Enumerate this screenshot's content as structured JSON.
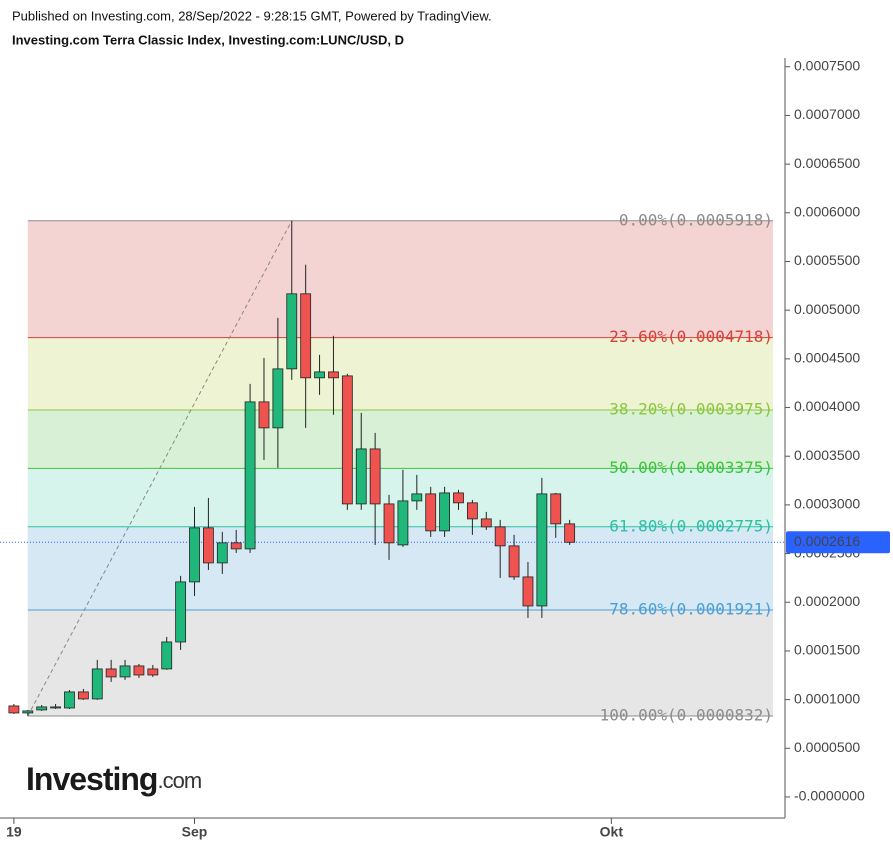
{
  "chart_data": {
    "type": "candlestick",
    "subtitle": "Published on Investing.com, 28/Sep/2022 - 9:28:15 GMT, Powered by TradingView.",
    "title": "Investing.com Terra Classic Index, Investing.com:LUNC/USD, D",
    "logo": "Investing",
    "logo_suffix": ".com",
    "x": [
      0,
      1,
      2,
      3,
      4,
      5,
      6,
      7,
      8,
      9,
      10,
      11,
      12,
      13,
      14,
      15,
      16,
      17,
      18,
      19,
      20,
      21,
      22,
      23,
      24,
      25,
      26,
      27,
      28,
      29,
      30,
      31,
      32,
      33,
      34,
      35,
      36,
      37,
      38,
      39,
      40
    ],
    "xlim": [
      -1,
      55.5
    ],
    "xticks": [
      {
        "value": 0,
        "label": "19"
      },
      {
        "value": 13,
        "label": "Sep"
      },
      {
        "value": 43,
        "label": "Okt"
      }
    ],
    "open": [
      9.35e-05,
      8.63e-05,
      8.94e-05,
      9.14e-05,
      9.14e-05,
      0.0001079,
      0.0001007,
      0.0001315,
      0.0001233,
      0.0001346,
      0.0001315,
      0.0001315,
      0.0001592,
      0.0002209,
      0.0002764,
      0.0002404,
      0.000261,
      0.0002548,
      0.0004058,
      0.0003791,
      0.0004397,
      0.0005168,
      0.0004305,
      0.0004366,
      0.0004325,
      0.000301,
      0.0003575,
      0.000301,
      0.0002589,
      0.0003041,
      0.0003113,
      0.0002733,
      0.0003123,
      0.0003021,
      0.0002856,
      0.0002774,
      0.0002579,
      0.000226,
      0.0001962,
      0.0003113,
      0.0002805
    ],
    "high": [
      9.55e-05,
      8.94e-05,
      9.45e-05,
      9.55e-05,
      0.0001099,
      0.000111,
      0.0001408,
      0.0001408,
      0.0001408,
      0.0001366,
      0.0001356,
      0.0001644,
      0.0002271,
      0.0002979,
      0.0003072,
      0.0002723,
      0.0002743,
      0.0004243,
      0.000451,
      0.0004921,
      0.0005918,
      0.0005466,
      0.0004541,
      0.0004736,
      0.0004346,
      0.0003945,
      0.000374,
      0.0003103,
      0.000336,
      0.0003308,
      0.0003185,
      0.0003185,
      0.0003154,
      0.0003051,
      0.0002928,
      0.0002846,
      0.0002692,
      0.0002414,
      0.0003277,
      0.0003123,
      0.0002846
    ],
    "low": [
      8.53e-05,
      8.32e-05,
      8.84e-05,
      9.04e-05,
      9.04e-05,
      9.97e-05,
      9.97e-05,
      0.0001182,
      0.0001202,
      0.0001223,
      0.0001233,
      0.0001305,
      0.000151,
      0.0002065,
      0.0002332,
      0.0002291,
      0.0002507,
      0.0002507,
      0.0003462,
      0.000338,
      0.0004284,
      0.0003791,
      0.000413,
      0.0003925,
      0.0002949,
      0.0002949,
      0.0002589,
      0.0002435,
      0.0002569,
      0.0002949,
      0.0002671,
      0.0002671,
      0.0002949,
      0.0002692,
      0.0002743,
      0.000225,
      0.0002229,
      0.0001839,
      0.0001839,
      0.0002661,
      0.0002589
    ],
    "close": [
      8.63e-05,
      8.84e-05,
      9.25e-05,
      9.25e-05,
      0.0001079,
      0.0001007,
      0.0001315,
      0.0001233,
      0.0001346,
      0.0001253,
      0.0001253,
      0.0001592,
      0.0002209,
      0.0002764,
      0.0002404,
      0.000261,
      0.0002548,
      0.0004058,
      0.0003791,
      0.0004397,
      0.0005168,
      0.0004305,
      0.0004366,
      0.0004305,
      0.000301,
      0.0003575,
      0.000301,
      0.000261,
      0.0003041,
      0.0003113,
      0.0002733,
      0.0003123,
      0.0003021,
      0.0002856,
      0.0002774,
      0.0002579,
      0.000226,
      0.0001962,
      0.0003113,
      0.0002805,
      0.0002616
    ],
    "up_color": "#1fb87a",
    "down_color": "#ef5350",
    "ylim": [
      -2.16e-05,
      0.000759
    ],
    "yticks": [
      {
        "value": 0,
        "label": "-0.0000000"
      },
      {
        "value": 5e-05,
        "label": "0.0000500"
      },
      {
        "value": 0.0001,
        "label": "0.0001000"
      },
      {
        "value": 0.00015,
        "label": "0.0001500"
      },
      {
        "value": 0.0002,
        "label": "0.0002000"
      },
      {
        "value": 0.00025,
        "label": "0.0002500"
      },
      {
        "value": 0.0003,
        "label": "0.0003000"
      },
      {
        "value": 0.00035,
        "label": "0.0003500"
      },
      {
        "value": 0.0004,
        "label": "0.0004000"
      },
      {
        "value": 0.00045,
        "label": "0.0004500"
      },
      {
        "value": 0.0005,
        "label": "0.0005000"
      },
      {
        "value": 0.00055,
        "label": "0.0005500"
      },
      {
        "value": 0.0006,
        "label": "0.0006000"
      },
      {
        "value": 0.00065,
        "label": "0.0006500"
      },
      {
        "value": 0.0007,
        "label": "0.0007000"
      },
      {
        "value": 0.00075,
        "label": "0.0007500"
      }
    ],
    "last_price": {
      "value": 0.0002616,
      "label": "0.0002616",
      "color": "#2962ff"
    },
    "fib_levels": [
      {
        "label": "0.00%(0.0005918)",
        "value": 0.0005918,
        "color": "#8c8c8c",
        "fill": "#f4d3d3"
      },
      {
        "label": "23.60%(0.0004718)",
        "value": 0.0004718,
        "color": "#d7413a",
        "fill": "#eef4d3"
      },
      {
        "label": "38.20%(0.0003975)",
        "value": 0.0003975,
        "color": "#8cc63f",
        "fill": "#d8f1d6"
      },
      {
        "label": "50.00%(0.0003375)",
        "value": 0.0003375,
        "color": "#3cc43c",
        "fill": "#d6f3ec"
      },
      {
        "label": "61.80%(0.0002775)",
        "value": 0.0002775,
        "color": "#2ebfa5",
        "fill": "#d5e8f4"
      },
      {
        "label": "78.60%(0.0001921)",
        "value": 0.0001921,
        "color": "#4a9fd6",
        "fill": "#e6e6e6"
      },
      {
        "label": "100.00%(0.0000832)",
        "value": 8.32e-05,
        "color": "#8c8c8c",
        "fill": "#e6e6e6"
      }
    ]
  }
}
